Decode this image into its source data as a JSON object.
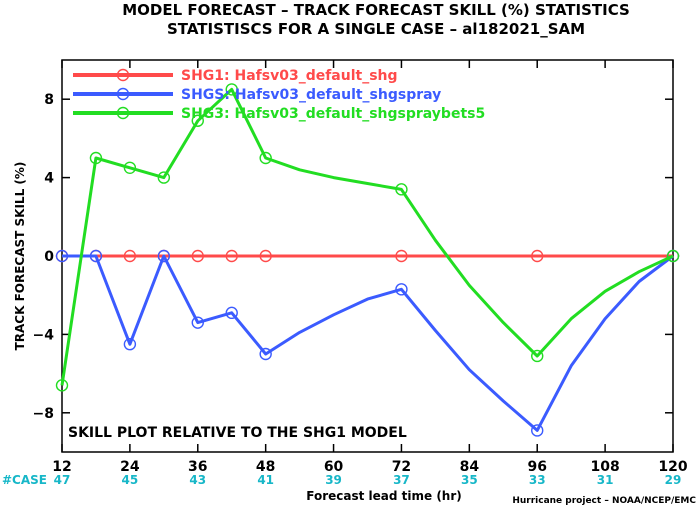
{
  "chart_data": {
    "type": "line",
    "title": "MODEL FORECAST – TRACK FORECAST SKILL (%) STATISTICS",
    "subtitle": "STATISTISCS FOR A SINGLE CASE – al182021_SAM",
    "xlabel": "Forecast lead time (hr)",
    "ylabel": "TRACK FORECAST SKILL (%)",
    "xlim": [
      12,
      120
    ],
    "ylim": [
      -10,
      10
    ],
    "xticks": [
      12,
      24,
      36,
      48,
      60,
      72,
      84,
      96,
      108,
      120
    ],
    "yticks": [
      -8,
      -4,
      0,
      4,
      8
    ],
    "grid": false,
    "legend_position": "top-left",
    "annotation": "SKILL PLOT RELATIVE TO THE SHG1 MODEL",
    "cases_label": "#CASE",
    "cases": [
      "47",
      "45",
      "43",
      "41",
      "39",
      "37",
      "35",
      "33",
      "31",
      "29"
    ],
    "credit": "Hurricane project – NOAA/NCEP/EMC",
    "series": [
      {
        "name": "SHG1: Hafsv03_default_shg",
        "color": "#ff4a4a",
        "x": [
          12,
          18,
          24,
          30,
          36,
          42,
          48,
          72,
          96,
          120
        ],
        "y": [
          0,
          0,
          0,
          0,
          0,
          0,
          0,
          0,
          0,
          0
        ],
        "marker_x": [
          12,
          18,
          24,
          30,
          36,
          42,
          48,
          72,
          96,
          120
        ]
      },
      {
        "name": "SHGS: Hafsv03_default_shgspray",
        "color": "#3b5bff",
        "x": [
          12,
          18,
          24,
          30,
          36,
          42,
          48,
          54,
          60,
          66,
          72,
          78,
          84,
          90,
          96,
          102,
          108,
          114,
          120
        ],
        "y": [
          0,
          0,
          -4.5,
          0,
          -3.4,
          -2.9,
          -5.0,
          -3.9,
          -3.0,
          -2.2,
          -1.7,
          -3.8,
          -5.8,
          -7.4,
          -8.9,
          -5.6,
          -3.2,
          -1.3,
          0
        ],
        "marker_x": [
          12,
          18,
          24,
          30,
          36,
          42,
          48,
          72,
          96,
          120
        ]
      },
      {
        "name": "SHG3: Hafsv03_default_shgspraybets5",
        "color": "#22dd22",
        "x": [
          12,
          18,
          24,
          30,
          36,
          42,
          48,
          54,
          60,
          66,
          72,
          78,
          84,
          90,
          96,
          102,
          108,
          114,
          120
        ],
        "y": [
          -6.6,
          5.0,
          4.5,
          4.0,
          6.9,
          8.5,
          5.0,
          4.4,
          4.0,
          3.7,
          3.4,
          0.8,
          -1.5,
          -3.4,
          -5.1,
          -3.2,
          -1.8,
          -0.8,
          0
        ],
        "marker_x": [
          12,
          18,
          24,
          30,
          36,
          42,
          48,
          72,
          96,
          120
        ]
      }
    ]
  }
}
